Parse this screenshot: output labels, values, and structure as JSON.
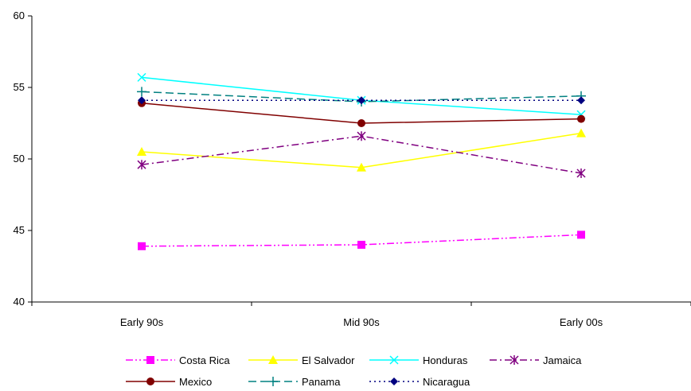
{
  "chart_data": {
    "type": "line",
    "title": "",
    "xlabel": "",
    "ylabel": "",
    "categories": [
      "Early 90s",
      "Mid 90s",
      "Early 00s"
    ],
    "ylim": [
      40,
      60
    ],
    "yticks": [
      40,
      45,
      50,
      55,
      60
    ],
    "grid": false,
    "legend_position": "bottom",
    "series": [
      {
        "name": "Costa Rica",
        "values": [
          43.9,
          44.0,
          44.7
        ],
        "color": "#FF00FF",
        "dash": "dashdotdot",
        "marker": "square"
      },
      {
        "name": "El Salvador",
        "values": [
          50.5,
          49.4,
          51.8
        ],
        "color": "#FFFF00",
        "dash": "solid",
        "marker": "triangle"
      },
      {
        "name": "Honduras",
        "values": [
          55.7,
          54.1,
          53.1
        ],
        "color": "#00FFFF",
        "dash": "solid",
        "marker": "x"
      },
      {
        "name": "Jamaica",
        "values": [
          49.6,
          51.6,
          49.0
        ],
        "color": "#800080",
        "dash": "dashdot",
        "marker": "star"
      },
      {
        "name": "Mexico",
        "values": [
          53.9,
          52.5,
          52.8
        ],
        "color": "#800000",
        "dash": "solid",
        "marker": "circle"
      },
      {
        "name": "Panama",
        "values": [
          54.7,
          54.0,
          54.4
        ],
        "color": "#008080",
        "dash": "dash",
        "marker": "plus"
      },
      {
        "name": "Nicaragua",
        "values": [
          54.1,
          54.1,
          54.1
        ],
        "color": "#000080",
        "dash": "dot",
        "marker": "diamond"
      }
    ]
  }
}
